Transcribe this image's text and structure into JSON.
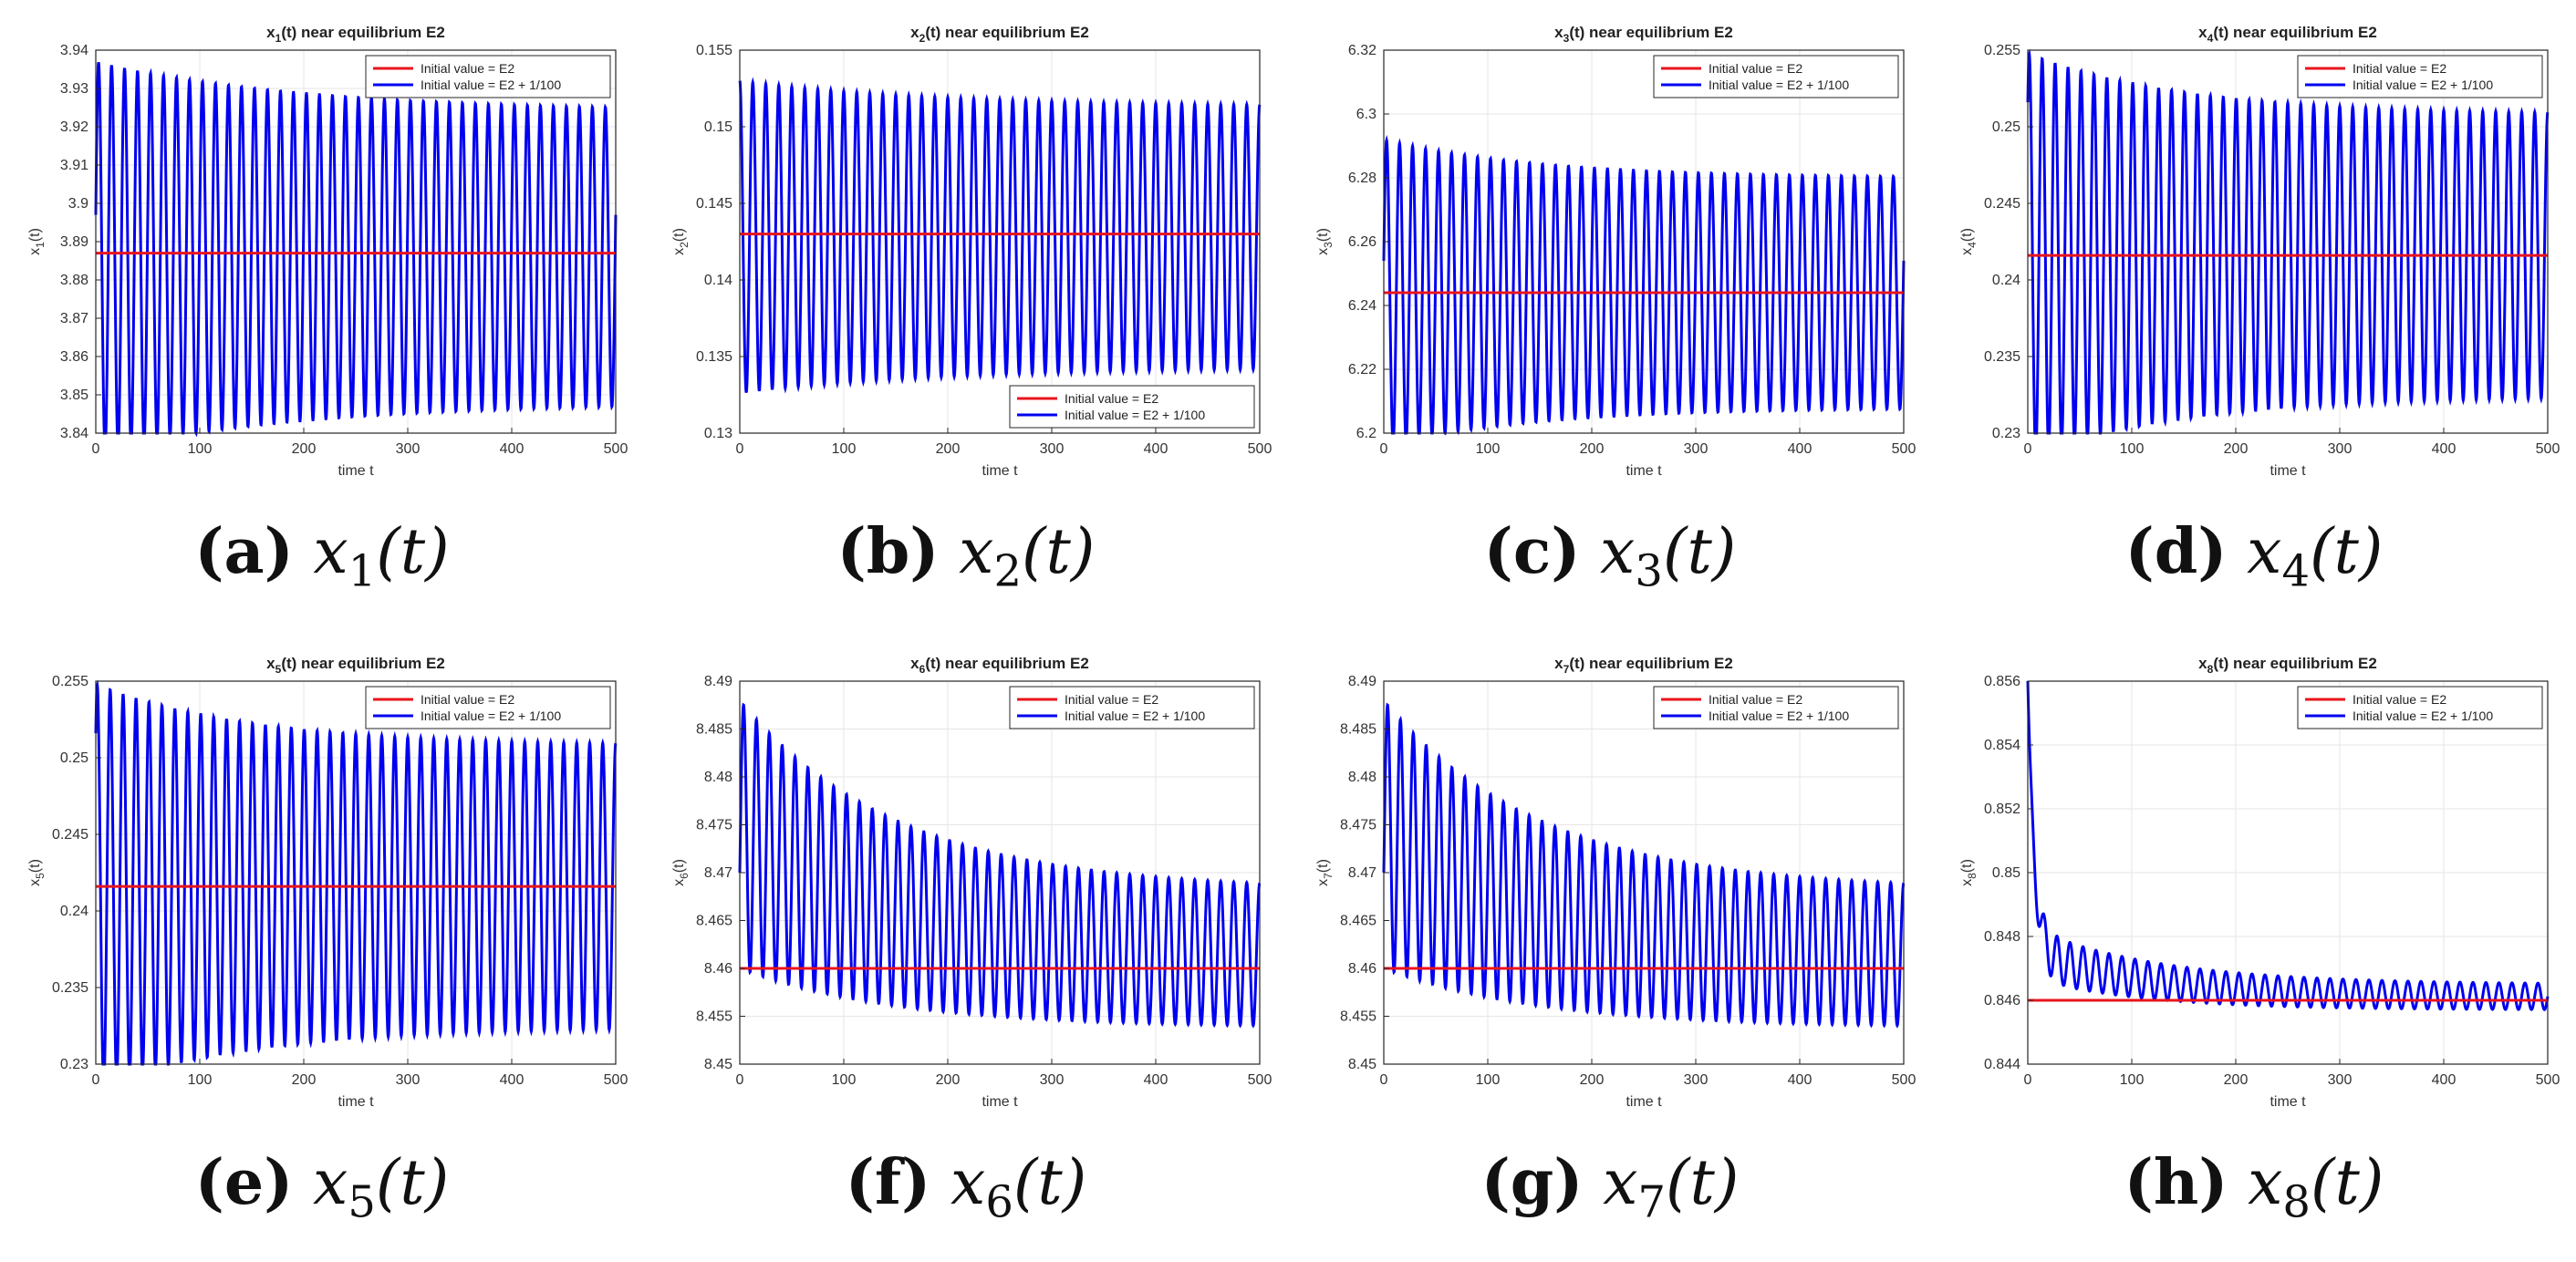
{
  "figure": {
    "legend_labels": [
      "Initial value = E2",
      "Initial value = E2 + 1/100"
    ],
    "series_colors": [
      "#e8141c",
      "#0000f0"
    ],
    "x_label": "time t"
  },
  "chart_data": [
    {
      "id": "a",
      "type": "line",
      "panel_label": "(a)",
      "caption_var": "x",
      "caption_sub": "1",
      "caption_arg": "(t)",
      "title": "x1(t) near equilibrium E2",
      "title_main": "x",
      "title_sub": "1",
      "title_rest": "(t) near equilibrium E2",
      "ylabel_main": "x",
      "ylabel_sub": "1",
      "ylabel_rest": "(t)",
      "xlabel": "time t",
      "xlim": [
        0,
        500
      ],
      "xticks": [
        0,
        100,
        200,
        300,
        400,
        500
      ],
      "ylim": [
        3.84,
        3.94
      ],
      "yticks": [
        3.84,
        3.85,
        3.86,
        3.87,
        3.88,
        3.89,
        3.9,
        3.91,
        3.92,
        3.93,
        3.94
      ],
      "legend_pos": "top-right",
      "series": [
        {
          "name": "Initial value = E2",
          "equilibrium": 3.887
        },
        {
          "name": "Initial value = E2 + 1/100",
          "period": 12.5,
          "start": 3.897,
          "amp_initial": 0.051,
          "amp_final": 0.038,
          "center_final": 3.886,
          "decay_time": 20,
          "amp_tau": 200
        }
      ]
    },
    {
      "id": "b",
      "type": "line",
      "panel_label": "(b)",
      "caption_var": "x",
      "caption_sub": "2",
      "caption_arg": "(t)",
      "title": "x2(t) near equilibrium E2",
      "title_main": "x",
      "title_sub": "2",
      "title_rest": "(t) near equilibrium E2",
      "ylabel_main": "x",
      "ylabel_sub": "2",
      "ylabel_rest": "(t)",
      "xlabel": "time t",
      "xlim": [
        0,
        500
      ],
      "xticks": [
        0,
        100,
        200,
        300,
        400,
        500
      ],
      "ylim": [
        0.13,
        0.155
      ],
      "yticks": [
        0.13,
        0.135,
        0.14,
        0.145,
        0.15,
        0.155
      ],
      "legend_pos": "bottom-right",
      "series": [
        {
          "name": "Initial value = E2",
          "equilibrium": 0.143
        },
        {
          "name": "Initial value = E2 + 1/100",
          "period": 12.5,
          "start": 0.153,
          "amp_initial": 0.0102,
          "amp_final": 0.0085,
          "center_final": 0.1428,
          "decay_time": 20,
          "amp_tau": 200
        }
      ]
    },
    {
      "id": "c",
      "type": "line",
      "panel_label": "(c)",
      "caption_var": "x",
      "caption_sub": "3",
      "caption_arg": "(t)",
      "title": "x3(t) near equilibrium E2",
      "title_main": "x",
      "title_sub": "3",
      "title_rest": "(t) near equilibrium E2",
      "ylabel_main": "x",
      "ylabel_sub": "3",
      "ylabel_rest": "(t)",
      "xlabel": "time t",
      "xlim": [
        0,
        500
      ],
      "xticks": [
        0,
        100,
        200,
        300,
        400,
        500
      ],
      "ylim": [
        6.2,
        6.32
      ],
      "yticks": [
        6.2,
        6.22,
        6.24,
        6.26,
        6.28,
        6.3,
        6.32
      ],
      "legend_pos": "top-right",
      "series": [
        {
          "name": "Initial value = E2",
          "equilibrium": 6.244
        },
        {
          "name": "Initial value = E2 + 1/100",
          "period": 12.5,
          "start": 6.254,
          "amp_initial": 0.048,
          "amp_final": 0.036,
          "center_final": 6.244,
          "decay_time": 20,
          "amp_tau": 150
        }
      ]
    },
    {
      "id": "d",
      "type": "line",
      "panel_label": "(d)",
      "caption_var": "x",
      "caption_sub": "4",
      "caption_arg": "(t)",
      "title": "x4(t) near equilibrium E2",
      "title_main": "x",
      "title_sub": "4",
      "title_rest": "(t) near equilibrium E2",
      "ylabel_main": "x",
      "ylabel_sub": "4",
      "ylabel_rest": "(t)",
      "xlabel": "time t",
      "xlim": [
        0,
        500
      ],
      "xticks": [
        0,
        100,
        200,
        300,
        400,
        500
      ],
      "ylim": [
        0.23,
        0.255
      ],
      "yticks": [
        0.23,
        0.235,
        0.24,
        0.245,
        0.25,
        0.255
      ],
      "legend_pos": "top-right",
      "series": [
        {
          "name": "Initial value = E2",
          "equilibrium": 0.2416
        },
        {
          "name": "Initial value = E2 + 1/100",
          "period": 12.5,
          "start": 0.2516,
          "amp_initial": 0.0132,
          "amp_final": 0.0092,
          "center_final": 0.2416,
          "decay_time": 15,
          "amp_tau": 150
        }
      ]
    },
    {
      "id": "e",
      "type": "line",
      "panel_label": "(e)",
      "caption_var": "x",
      "caption_sub": "5",
      "caption_arg": "(t)",
      "title": "x5(t) near equilibrium E2",
      "title_main": "x",
      "title_sub": "5",
      "title_rest": "(t) near equilibrium E2",
      "ylabel_main": "x",
      "ylabel_sub": "5",
      "ylabel_rest": "(t)",
      "xlabel": "time t",
      "xlim": [
        0,
        500
      ],
      "xticks": [
        0,
        100,
        200,
        300,
        400,
        500
      ],
      "ylim": [
        0.23,
        0.255
      ],
      "yticks": [
        0.23,
        0.235,
        0.24,
        0.245,
        0.25,
        0.255
      ],
      "legend_pos": "top-right",
      "series": [
        {
          "name": "Initial value = E2",
          "equilibrium": 0.2416
        },
        {
          "name": "Initial value = E2 + 1/100",
          "period": 12.5,
          "start": 0.2516,
          "amp_initial": 0.0132,
          "amp_final": 0.0092,
          "center_final": 0.2416,
          "decay_time": 15,
          "amp_tau": 150
        }
      ]
    },
    {
      "id": "f",
      "type": "line",
      "panel_label": "(f)",
      "caption_var": "x",
      "caption_sub": "6",
      "caption_arg": "(t)",
      "title": "x6(t) near equilibrium E2",
      "title_main": "x",
      "title_sub": "6",
      "title_rest": "(t) near equilibrium E2",
      "ylabel_main": "x",
      "ylabel_sub": "6",
      "ylabel_rest": "(t)",
      "xlabel": "time t",
      "xlim": [
        0,
        500
      ],
      "xticks": [
        0,
        100,
        200,
        300,
        400,
        500
      ],
      "ylim": [
        8.45,
        8.49
      ],
      "yticks": [
        8.45,
        8.455,
        8.46,
        8.465,
        8.47,
        8.475,
        8.48,
        8.485,
        8.49
      ],
      "legend_pos": "top-right",
      "series": [
        {
          "name": "Initial value = E2",
          "equilibrium": 8.46
        },
        {
          "name": "Initial value = E2 + 1/100",
          "period": 12.5,
          "start": 8.47,
          "amp_initial": 0.014,
          "amp_final": 0.0072,
          "center_initial": 8.474,
          "center_final": 8.461,
          "decay_time": 150,
          "amp_tau": 150
        }
      ]
    },
    {
      "id": "g",
      "type": "line",
      "panel_label": "(g)",
      "caption_var": "x",
      "caption_sub": "7",
      "caption_arg": "(t)",
      "title": "x7(t) near equilibrium E2",
      "title_main": "x",
      "title_sub": "7",
      "title_rest": "(t) near equilibrium E2",
      "ylabel_main": "x",
      "ylabel_sub": "7",
      "ylabel_rest": "(t)",
      "xlabel": "time t",
      "xlim": [
        0,
        500
      ],
      "xticks": [
        0,
        100,
        200,
        300,
        400,
        500
      ],
      "ylim": [
        8.45,
        8.49
      ],
      "yticks": [
        8.45,
        8.455,
        8.46,
        8.465,
        8.47,
        8.475,
        8.48,
        8.485,
        8.49
      ],
      "legend_pos": "top-right",
      "series": [
        {
          "name": "Initial value = E2",
          "equilibrium": 8.46
        },
        {
          "name": "Initial value = E2 + 1/100",
          "period": 12.5,
          "start": 8.47,
          "amp_initial": 0.014,
          "amp_final": 0.0072,
          "center_initial": 8.474,
          "center_final": 8.461,
          "decay_time": 150,
          "amp_tau": 150
        }
      ]
    },
    {
      "id": "h",
      "type": "line",
      "panel_label": "(h)",
      "caption_var": "x",
      "caption_sub": "8",
      "caption_arg": "(t)",
      "title": "x8(t) near equilibrium E2",
      "title_main": "x",
      "title_sub": "8",
      "title_rest": "(t) near equilibrium E2",
      "ylabel_main": "x",
      "ylabel_sub": "8",
      "ylabel_rest": "(t)",
      "xlabel": "time t",
      "xlim": [
        0,
        500
      ],
      "xticks": [
        0,
        100,
        200,
        300,
        400,
        500
      ],
      "ylim": [
        0.844,
        0.856
      ],
      "yticks": [
        0.844,
        0.846,
        0.848,
        0.85,
        0.852,
        0.854,
        0.856
      ],
      "legend_pos": "top-right",
      "series": [
        {
          "name": "Initial value = E2",
          "equilibrium": 0.846
        },
        {
          "name": "Initial value = E2 + 1/100",
          "period": 12.5,
          "start": 0.856,
          "amp_initial": 0.0008,
          "amp_final": 0.0004,
          "center_initial": 0.8475,
          "center_final": 0.8461,
          "decay_time": 120,
          "amp_tau": 150,
          "early_drop_tau": 6
        }
      ]
    }
  ]
}
